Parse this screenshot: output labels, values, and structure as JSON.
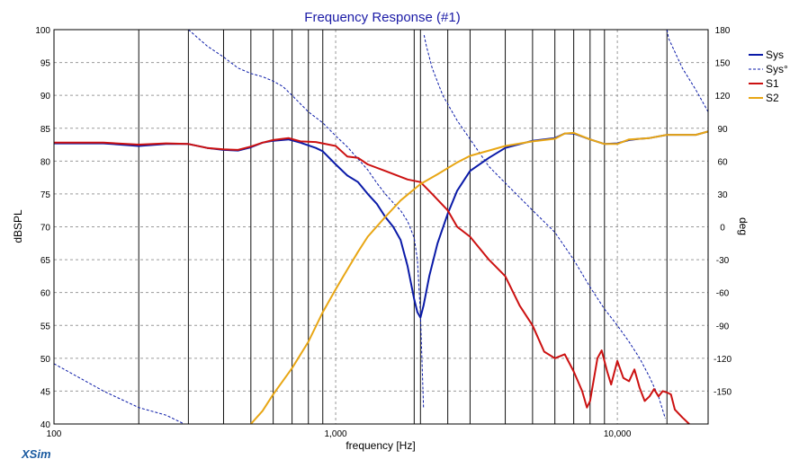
{
  "chart_data": {
    "type": "line",
    "title": "Frequency Response (#1)",
    "xlabel": "frequency [Hz]",
    "ylabel": "dBSPL",
    "ylabel_right": "deg",
    "x_scale": "log",
    "xlim": [
      100,
      21000
    ],
    "ylim": [
      40,
      100
    ],
    "ylim_right": [
      -180,
      180
    ],
    "x_ticks": [
      {
        "value": 100,
        "label": "100"
      },
      {
        "value": 1000,
        "label": "1,000"
      },
      {
        "value": 10000,
        "label": "10,000"
      }
    ],
    "y_ticks": [
      {
        "value": 40,
        "label": "40"
      },
      {
        "value": 45,
        "label": "45"
      },
      {
        "value": 50,
        "label": "50"
      },
      {
        "value": 55,
        "label": "55"
      },
      {
        "value": 60,
        "label": "60"
      },
      {
        "value": 65,
        "label": "65"
      },
      {
        "value": 70,
        "label": "70"
      },
      {
        "value": 75,
        "label": "75"
      },
      {
        "value": 80,
        "label": "80"
      },
      {
        "value": 85,
        "label": "85"
      },
      {
        "value": 90,
        "label": "90"
      },
      {
        "value": 95,
        "label": "95"
      },
      {
        "value": 100,
        "label": "100"
      }
    ],
    "y_ticks_right": [
      {
        "value": 180,
        "label": "180"
      },
      {
        "value": 150,
        "label": "150"
      },
      {
        "value": 120,
        "label": "120"
      },
      {
        "value": 90,
        "label": "90"
      },
      {
        "value": 60,
        "label": "60"
      },
      {
        "value": 30,
        "label": "30"
      },
      {
        "value": 0,
        "label": "0"
      },
      {
        "value": -30,
        "label": "-30"
      },
      {
        "value": -60,
        "label": "-60"
      },
      {
        "value": -90,
        "label": "-90"
      },
      {
        "value": -120,
        "label": "-120"
      },
      {
        "value": -150,
        "label": "-150"
      }
    ],
    "grid": true,
    "legend_position": "right",
    "series": [
      {
        "name": "Sys",
        "axis": "left",
        "color": "#0a1aa8",
        "dash": false,
        "points": [
          [
            100,
            82.7
          ],
          [
            150,
            82.7
          ],
          [
            200,
            82.3
          ],
          [
            250,
            82.6
          ],
          [
            300,
            82.6
          ],
          [
            350,
            82
          ],
          [
            400,
            81.7
          ],
          [
            450,
            81.6
          ],
          [
            500,
            82.1
          ],
          [
            550,
            82.8
          ],
          [
            600,
            83.1
          ],
          [
            680,
            83.3
          ],
          [
            750,
            82.8
          ],
          [
            850,
            82
          ],
          [
            900,
            81.5
          ],
          [
            1000,
            79.5
          ],
          [
            1100,
            77.8
          ],
          [
            1200,
            76.8
          ],
          [
            1300,
            75
          ],
          [
            1400,
            73.5
          ],
          [
            1500,
            71.5
          ],
          [
            1600,
            70
          ],
          [
            1700,
            68
          ],
          [
            1800,
            64
          ],
          [
            1900,
            59
          ],
          [
            1950,
            57
          ],
          [
            2000,
            56.2
          ],
          [
            2050,
            58
          ],
          [
            2150,
            62.5
          ],
          [
            2300,
            67.5
          ],
          [
            2500,
            72
          ],
          [
            2700,
            75.5
          ],
          [
            3000,
            78.5
          ],
          [
            3500,
            80.5
          ],
          [
            4000,
            82
          ],
          [
            5000,
            83.1
          ],
          [
            6000,
            83.5
          ],
          [
            6500,
            84.2
          ],
          [
            7000,
            84.2
          ],
          [
            8000,
            83.3
          ],
          [
            9000,
            82.6
          ],
          [
            10000,
            82.7
          ],
          [
            11000,
            83.2
          ],
          [
            12000,
            83.4
          ],
          [
            13000,
            83.5
          ],
          [
            15000,
            84
          ],
          [
            17000,
            84
          ],
          [
            19000,
            84
          ],
          [
            21000,
            84.5
          ]
        ]
      },
      {
        "name": "Sys°",
        "axis": "right",
        "color": "#0a1aa8",
        "dash": true,
        "points": [
          [
            100,
            -125
          ],
          [
            150,
            -150
          ],
          [
            200,
            -165
          ],
          [
            250,
            -172
          ],
          [
            290,
            -180
          ],
          [
            300,
            180
          ],
          [
            350,
            165
          ],
          [
            400,
            155
          ],
          [
            450,
            145
          ],
          [
            500,
            140
          ],
          [
            550,
            137
          ],
          [
            600,
            133
          ],
          [
            650,
            128
          ],
          [
            700,
            120
          ],
          [
            800,
            105
          ],
          [
            900,
            95
          ],
          [
            1000,
            83
          ],
          [
            1100,
            73
          ],
          [
            1200,
            62
          ],
          [
            1300,
            52
          ],
          [
            1400,
            40
          ],
          [
            1500,
            30
          ],
          [
            1600,
            22
          ],
          [
            1700,
            15
          ],
          [
            1800,
            5
          ],
          [
            1900,
            -10
          ],
          [
            1950,
            -30
          ],
          [
            2000,
            -80
          ],
          [
            2030,
            -130
          ],
          [
            2050,
            -165
          ],
          [
            2060,
            175
          ],
          [
            2100,
            165
          ],
          [
            2200,
            145
          ],
          [
            2400,
            120
          ],
          [
            2700,
            97
          ],
          [
            3000,
            80
          ],
          [
            3500,
            55
          ],
          [
            4000,
            40
          ],
          [
            5000,
            15
          ],
          [
            6000,
            -5
          ],
          [
            7000,
            -30
          ],
          [
            8000,
            -55
          ],
          [
            9000,
            -75
          ],
          [
            10000,
            -90
          ],
          [
            11000,
            -105
          ],
          [
            12000,
            -120
          ],
          [
            13000,
            -137
          ],
          [
            14000,
            -155
          ],
          [
            14800,
            -175
          ],
          [
            15000,
            180
          ],
          [
            15200,
            172
          ],
          [
            17000,
            145
          ],
          [
            19000,
            125
          ],
          [
            21000,
            105
          ]
        ]
      },
      {
        "name": "S1",
        "axis": "left",
        "color": "#cc1111",
        "dash": false,
        "points": [
          [
            100,
            82.8
          ],
          [
            150,
            82.8
          ],
          [
            200,
            82.5
          ],
          [
            250,
            82.7
          ],
          [
            300,
            82.6
          ],
          [
            350,
            82
          ],
          [
            400,
            81.8
          ],
          [
            450,
            81.7
          ],
          [
            500,
            82.2
          ],
          [
            550,
            82.8
          ],
          [
            600,
            83.2
          ],
          [
            680,
            83.5
          ],
          [
            750,
            83
          ],
          [
            850,
            82.9
          ],
          [
            1000,
            82.3
          ],
          [
            1100,
            80.7
          ],
          [
            1200,
            80.5
          ],
          [
            1300,
            79.5
          ],
          [
            1500,
            78.5
          ],
          [
            1800,
            77.2
          ],
          [
            2000,
            76.8
          ],
          [
            2200,
            75
          ],
          [
            2500,
            72.5
          ],
          [
            2700,
            70
          ],
          [
            3000,
            68.5
          ],
          [
            3500,
            65
          ],
          [
            4000,
            62.5
          ],
          [
            4500,
            58
          ],
          [
            5000,
            55
          ],
          [
            5500,
            51
          ],
          [
            6000,
            50
          ],
          [
            6500,
            50.6
          ],
          [
            7000,
            48
          ],
          [
            7500,
            45
          ],
          [
            7800,
            42.5
          ],
          [
            8000,
            43.5
          ],
          [
            8500,
            50
          ],
          [
            8800,
            51.2
          ],
          [
            9200,
            48
          ],
          [
            9500,
            46
          ],
          [
            10000,
            49.6
          ],
          [
            10500,
            47
          ],
          [
            11000,
            46.5
          ],
          [
            11500,
            48.3
          ],
          [
            12000,
            45.5
          ],
          [
            12500,
            43.5
          ],
          [
            13000,
            44.2
          ],
          [
            13500,
            45.3
          ],
          [
            14000,
            44.2
          ],
          [
            14500,
            45
          ],
          [
            15000,
            44.8
          ],
          [
            15500,
            44.5
          ],
          [
            16000,
            42.2
          ],
          [
            17000,
            41
          ],
          [
            18000,
            40
          ]
        ]
      },
      {
        "name": "S2",
        "axis": "left",
        "color": "#e8a614",
        "dash": false,
        "points": [
          [
            500,
            40
          ],
          [
            550,
            42
          ],
          [
            600,
            44.5
          ],
          [
            700,
            48.5
          ],
          [
            800,
            52.5
          ],
          [
            900,
            57
          ],
          [
            1000,
            60.5
          ],
          [
            1100,
            63.5
          ],
          [
            1200,
            66.2
          ],
          [
            1300,
            68.5
          ],
          [
            1500,
            71.5
          ],
          [
            1700,
            74
          ],
          [
            2000,
            76.5
          ],
          [
            2300,
            78
          ],
          [
            2700,
            79.8
          ],
          [
            3000,
            80.8
          ],
          [
            3500,
            81.6
          ],
          [
            4000,
            82.3
          ],
          [
            5000,
            83
          ],
          [
            6000,
            83.4
          ],
          [
            6500,
            84.2
          ],
          [
            7000,
            84.3
          ],
          [
            8000,
            83.3
          ],
          [
            9000,
            82.6
          ],
          [
            10000,
            82.6
          ],
          [
            11000,
            83.3
          ],
          [
            12000,
            83.4
          ],
          [
            13000,
            83.5
          ],
          [
            15000,
            84
          ],
          [
            17000,
            84
          ],
          [
            19000,
            84
          ],
          [
            21000,
            84.5
          ]
        ]
      }
    ],
    "vertical_markers": [
      200,
      300,
      400,
      500,
      600,
      700,
      800,
      900,
      1900,
      2000,
      2500,
      3000,
      4000,
      5000,
      6000,
      7000,
      8000,
      9000,
      15000
    ]
  },
  "branding": {
    "text": "XSim"
  },
  "colors": {
    "title": "#1a1aa6",
    "grid": "#9a9a9a",
    "marker": "#111111",
    "brand": "#1a5aa0"
  }
}
